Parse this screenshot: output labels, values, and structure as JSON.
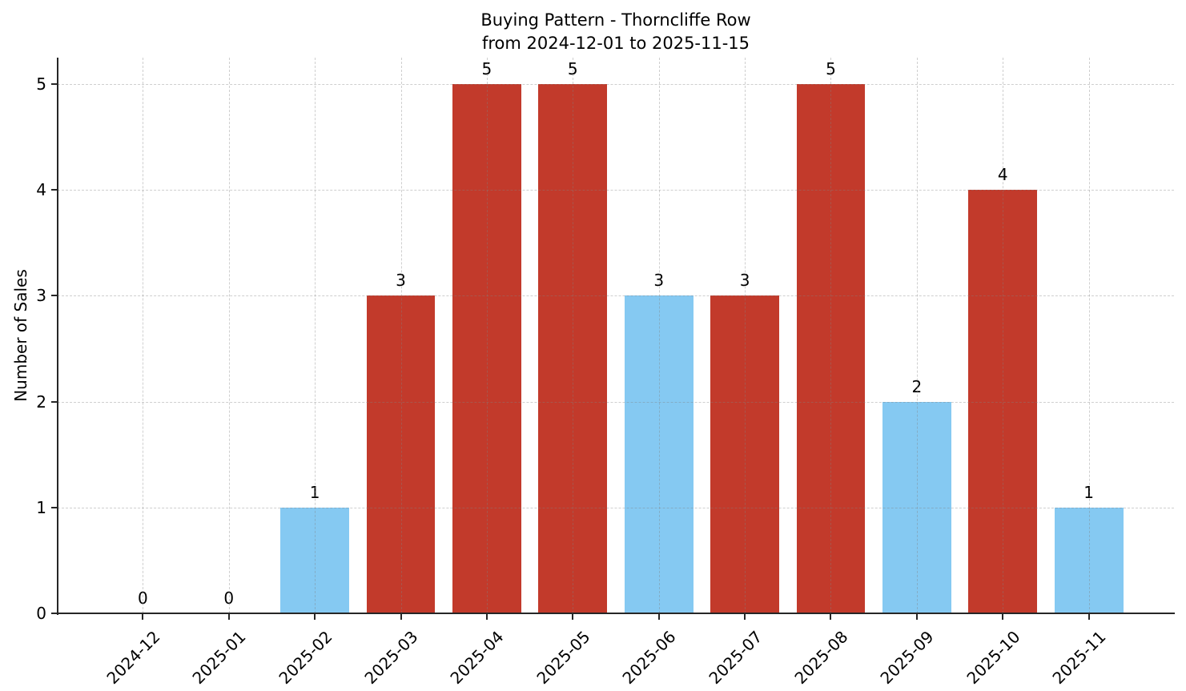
{
  "title": {
    "line1": "Buying Pattern - Thorncliffe Row",
    "line2": "from 2024-12-01 to 2025-11-15"
  },
  "chart_data": {
    "type": "bar",
    "title": "Buying Pattern - Thorncliffe Row\nfrom 2024-12-01 to 2025-11-15",
    "xlabel": "",
    "ylabel": "Number of Sales",
    "categories": [
      "2024-12",
      "2025-01",
      "2025-02",
      "2025-03",
      "2025-04",
      "2025-05",
      "2025-06",
      "2025-07",
      "2025-08",
      "2025-09",
      "2025-10",
      "2025-11"
    ],
    "values": [
      0,
      0,
      1,
      3,
      5,
      5,
      3,
      3,
      5,
      2,
      4,
      1
    ],
    "value_labels": [
      "0",
      "0",
      "1",
      "3",
      "5",
      "5",
      "3",
      "3",
      "5",
      "2",
      "4",
      "1"
    ],
    "bar_colors": [
      null,
      null,
      "#85C9F2",
      "#C23A2B",
      "#C23A2B",
      "#C23A2B",
      "#85C9F2",
      "#C23A2B",
      "#C23A2B",
      "#85C9F2",
      "#C23A2B",
      "#85C9F2"
    ],
    "yticks": [
      0,
      1,
      2,
      3,
      4,
      5
    ],
    "ylim": [
      0,
      5.25
    ],
    "xlim": [
      -0.99,
      11.99
    ],
    "bar_width": 0.8,
    "grid": true,
    "grid_linestyle": "dashed",
    "legend": null,
    "colors": {
      "bar_red": "#C23A2B",
      "bar_blue": "#85C9F2",
      "spine": "#262626",
      "text": "#000000",
      "background": "#FFFFFF"
    }
  }
}
